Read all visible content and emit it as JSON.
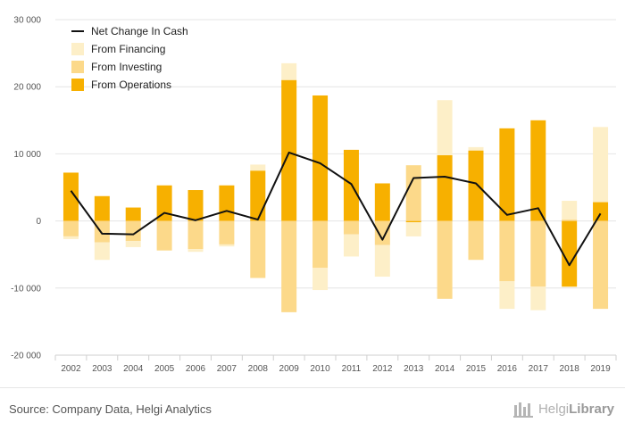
{
  "chart_data": {
    "type": "bar",
    "stacked": true,
    "categories": [
      "2002",
      "2003",
      "2004",
      "2005",
      "2006",
      "2007",
      "2008",
      "2009",
      "2010",
      "2011",
      "2012",
      "2013",
      "2014",
      "2015",
      "2016",
      "2017",
      "2018",
      "2019"
    ],
    "series": [
      {
        "name": "From Operations",
        "kind": "bar",
        "color": "#f7b000",
        "values": [
          7200,
          3700,
          2000,
          5300,
          4600,
          5300,
          7500,
          21000,
          18700,
          10600,
          5600,
          -200,
          9800,
          10500,
          13800,
          15000,
          -9800,
          2800
        ]
      },
      {
        "name": "From Investing",
        "kind": "bar",
        "color": "#fcd98a",
        "values": [
          -2300,
          -3200,
          -3000,
          -4400,
          -4200,
          -3500,
          -8500,
          -13600,
          -7000,
          -2000,
          -3600,
          8300,
          -11600,
          -5800,
          -9000,
          -9800,
          200,
          -13100
        ]
      },
      {
        "name": "From Financing",
        "kind": "bar",
        "color": "#fdefc8",
        "values": [
          -400,
          -2600,
          -900,
          0,
          -400,
          -300,
          900,
          2500,
          -3300,
          -3300,
          -4700,
          -2100,
          8200,
          500,
          -4100,
          -3500,
          2800,
          11200
        ]
      },
      {
        "name": "Net Change In Cash",
        "kind": "line",
        "color": "#111111",
        "values": [
          4500,
          -1900,
          -2000,
          1200,
          100,
          1500,
          200,
          10200,
          8600,
          5500,
          -2800,
          6400,
          6600,
          5600,
          900,
          1900,
          -6600,
          1100
        ]
      }
    ],
    "ylim": [
      -20000,
      30000
    ],
    "yticks": [
      "30 000",
      "20 000",
      "10 000",
      "0",
      "-10 000",
      "-20 000"
    ],
    "ytick_values": [
      30000,
      20000,
      10000,
      0,
      -10000,
      -20000
    ],
    "grid": true,
    "legend": {
      "placement": "top-left",
      "order": [
        "Net Change In Cash",
        "From Financing",
        "From Investing",
        "From Operations"
      ]
    }
  },
  "footer": {
    "source": "Source: Company Data, Helgi Analytics",
    "logo_light": "Helgi",
    "logo_bold": "Library"
  }
}
